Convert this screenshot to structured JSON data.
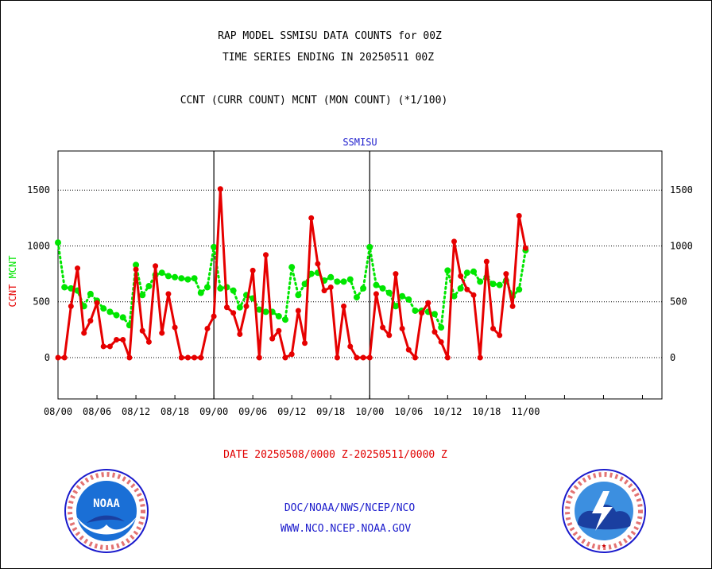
{
  "header": {
    "title_line1": "RAP MODEL SSMISU DATA COUNTS for 00Z",
    "title_line2": "TIME SERIES ENDING IN 20250511 00Z",
    "subtitle": "CCNT (CURR COUNT) MCNT (MON COUNT) (*1/100)"
  },
  "footer": {
    "date_range": "DATE 20250508/0000 Z-20250511/0000 Z",
    "org_path": "DOC/NOAA/NWS/NCEP/NCO",
    "website": "WWW.NCO.NCEP.NOAA.GOV"
  },
  "logos": {
    "noaa_text": "NOAA",
    "noaa_ring": "NATIONAL OCEANIC AND ATMOSPHERIC ADMINISTRATION · U.S. DEPARTMENT OF COMMERCE",
    "nws_ring": "NATIONAL WEATHER SERVICE"
  },
  "chart_data": {
    "type": "line",
    "title": "SSMISU",
    "ylabel_ccnt": "CCNT",
    "ylabel_mcnt": "MCNT",
    "ylim": [
      -370,
      1850
    ],
    "yticks": [
      0,
      500,
      1000,
      1500
    ],
    "xlim": [
      0,
      93
    ],
    "xticks": [
      0,
      6,
      12,
      18,
      24,
      30,
      36,
      42,
      48,
      54,
      60,
      66,
      72,
      78,
      84,
      90
    ],
    "xtick_labels": [
      "08/00",
      "08/06",
      "08/12",
      "08/18",
      "09/00",
      "09/06",
      "09/12",
      "09/18",
      "10/00",
      "10/06",
      "10/12",
      "10/18",
      "11/00"
    ],
    "xtick_label_positions": [
      0,
      6,
      12,
      18,
      24,
      30,
      36,
      42,
      48,
      54,
      60,
      66,
      72
    ],
    "day_dividers": [
      24,
      48
    ],
    "grid": true,
    "colors": {
      "ccnt": "#e60000",
      "mcnt": "#00e600",
      "title": "#1a1acc"
    },
    "series": [
      {
        "name": "CCNT",
        "x": [
          0,
          1,
          2,
          3,
          4,
          5,
          6,
          7,
          8,
          9,
          10,
          11,
          12,
          13,
          14,
          15,
          16,
          17,
          18,
          19,
          20,
          21,
          22,
          23,
          24,
          25,
          26,
          27,
          28,
          29,
          30,
          31,
          32,
          33,
          34,
          35,
          36,
          37,
          38,
          39,
          40,
          41,
          42,
          43,
          44,
          45,
          46,
          47,
          48,
          49,
          50,
          51,
          52,
          53,
          54,
          55,
          56,
          57,
          58,
          59,
          60,
          61,
          62,
          63,
          64,
          65,
          66,
          67,
          68,
          69,
          70,
          71,
          72
        ],
        "values": [
          0,
          0,
          460,
          800,
          220,
          330,
          490,
          100,
          100,
          160,
          160,
          0,
          790,
          240,
          140,
          820,
          220,
          570,
          270,
          0,
          0,
          0,
          0,
          260,
          370,
          1510,
          450,
          400,
          210,
          460,
          780,
          0,
          920,
          170,
          240,
          0,
          30,
          420,
          130,
          1250,
          840,
          600,
          630,
          0,
          460,
          100,
          0,
          0,
          0,
          570,
          270,
          200,
          750,
          260,
          70,
          0,
          400,
          490,
          230,
          140,
          0,
          1040,
          730,
          610,
          560,
          0,
          860,
          260,
          200,
          750,
          460,
          1270,
          980
        ]
      },
      {
        "name": "MCNT",
        "x": [
          0,
          1,
          2,
          3,
          4,
          5,
          6,
          7,
          8,
          9,
          10,
          11,
          12,
          13,
          14,
          15,
          16,
          17,
          18,
          19,
          20,
          21,
          22,
          23,
          24,
          25,
          26,
          27,
          28,
          29,
          30,
          31,
          32,
          33,
          34,
          35,
          36,
          37,
          38,
          39,
          40,
          41,
          42,
          43,
          44,
          45,
          46,
          47,
          48,
          49,
          50,
          51,
          52,
          53,
          54,
          55,
          56,
          57,
          58,
          59,
          60,
          61,
          62,
          63,
          64,
          65,
          66,
          67,
          68,
          69,
          70,
          71,
          72
        ],
        "values": [
          1030,
          630,
          620,
          600,
          460,
          570,
          510,
          440,
          410,
          380,
          360,
          290,
          830,
          560,
          640,
          740,
          760,
          730,
          720,
          710,
          700,
          710,
          580,
          630,
          990,
          620,
          630,
          600,
          450,
          560,
          530,
          430,
          410,
          410,
          370,
          340,
          810,
          560,
          660,
          750,
          760,
          690,
          720,
          680,
          680,
          700,
          540,
          620,
          990,
          650,
          620,
          580,
          460,
          550,
          520,
          420,
          420,
          410,
          390,
          270,
          780,
          550,
          620,
          760,
          770,
          680,
          720,
          660,
          650,
          690,
          550,
          610,
          960
        ]
      }
    ]
  }
}
